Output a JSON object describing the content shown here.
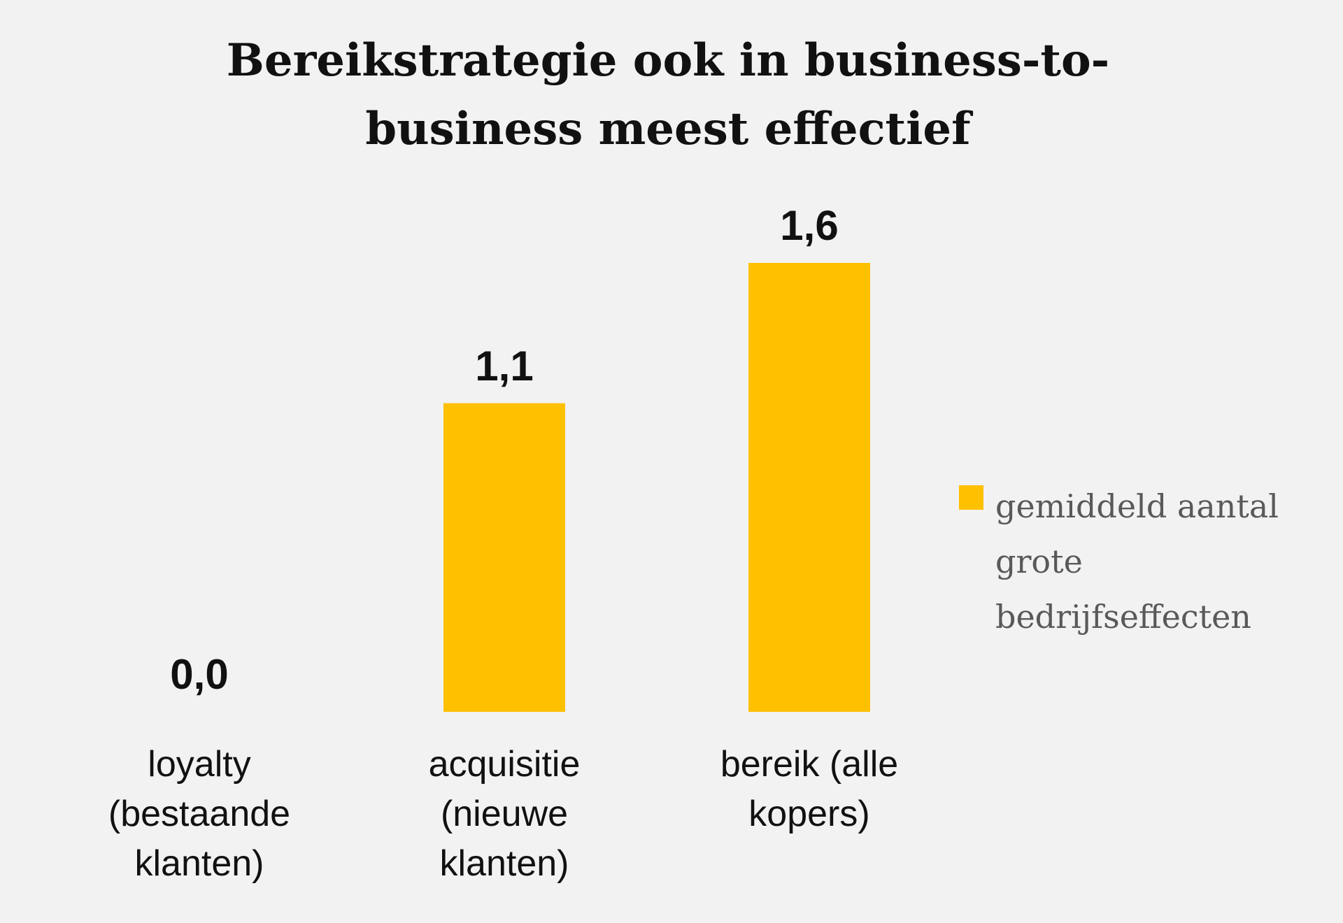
{
  "chart_data": {
    "type": "bar",
    "title": "Bereikstrategie ook in business-to-business meest effectief",
    "categories": [
      "loyalty (bestaande klanten)",
      "acquisitie (nieuwe klanten)",
      "bereik (alle kopers)"
    ],
    "series": [
      {
        "name": "gemiddeld aantal grote bedrijfseffecten",
        "color": "#ffc000",
        "values": [
          0.0,
          1.1,
          1.6
        ],
        "value_labels": [
          "0,0",
          "1,1",
          "1,6"
        ]
      }
    ],
    "legend": "right"
  }
}
